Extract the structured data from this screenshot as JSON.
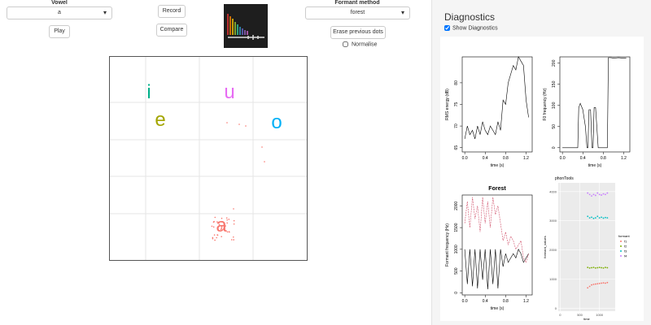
{
  "controls": {
    "vowel_label": "Vowel",
    "vowel_value": "a",
    "play": "Play",
    "record": "Record",
    "compare": "Compare",
    "formant_label": "Formant method",
    "formant_value": "forest",
    "erase": "Erase previous dots",
    "normalise": "Normalise"
  },
  "vowel_plot": {
    "letters": [
      "i",
      "e",
      "u",
      "o",
      "a"
    ],
    "colors": [
      "#00b08a",
      "#a3a500",
      "#e76bf3",
      "#00b0f6",
      "#f8766d"
    ]
  },
  "diagnostics": {
    "title": "Diagnostics",
    "show_label": "Show Diagnostics",
    "plots": [
      {
        "type": "line",
        "panel": "base",
        "ylabel": "RMS energy (dB)",
        "xlabel": "time (s)",
        "xlim": [
          -0.05,
          1.32
        ],
        "ylim": [
          64,
          86
        ],
        "xticks": [
          {
            "value": 0,
            "label": "0.0"
          },
          0.4,
          0.8,
          1.2
        ],
        "yticks": [
          65,
          70,
          75,
          80
        ],
        "series": [
          {
            "color": "#000000",
            "x": [
              0,
              0.05,
              0.1,
              0.15,
              0.2,
              0.25,
              0.3,
              0.35,
              0.4,
              0.45,
              0.5,
              0.55,
              0.6,
              0.65,
              0.7,
              0.75,
              0.8,
              0.85,
              0.9,
              0.95,
              1.0,
              1.05,
              1.1,
              1.15,
              1.2,
              1.25
            ],
            "values": [
              67,
              70,
              68,
              69,
              67,
              70,
              68,
              71,
              69,
              68,
              70,
              69,
              68,
              71,
              69,
              76,
              75,
              80,
              82,
              84,
              83,
              86,
              85,
              84,
              76,
              72
            ]
          }
        ]
      },
      {
        "type": "line",
        "panel": "base",
        "ylabel": "F0 frequency (Hz)",
        "xlabel": "time (s)",
        "xlim": [
          -0.05,
          1.32
        ],
        "ylim": [
          -10,
          215
        ],
        "xticks": [
          {
            "value": 0,
            "label": "0.0"
          },
          0.4,
          0.8,
          1.2
        ],
        "yticks": [
          0,
          50,
          100,
          150,
          200
        ],
        "series": [
          {
            "color": "#000000",
            "x": [
              0,
              0.2,
              0.3,
              0.32,
              0.35,
              0.4,
              0.45,
              0.48,
              0.5,
              0.52,
              0.55,
              0.58,
              0.6,
              0.62,
              0.65,
              0.7,
              0.72,
              0.75,
              0.8,
              0.88,
              0.9,
              0.95,
              1.0,
              1.1,
              1.2,
              1.25
            ],
            "values": [
              0,
              0,
              0,
              95,
              105,
              90,
              50,
              0,
              0,
              90,
              90,
              0,
              0,
              95,
              95,
              0,
              0,
              0,
              0,
              0,
              213,
              213,
              212,
              213,
              212,
              212
            ]
          }
        ]
      },
      {
        "type": "line",
        "panel": "base",
        "title": "Forest",
        "ylabel": "Formant frequency (Hz)",
        "xlabel": "time (s)",
        "xlim": [
          -0.05,
          1.32
        ],
        "ylim": [
          -50,
          2250
        ],
        "xticks": [
          {
            "value": 0,
            "label": "0.0"
          },
          0.4,
          0.8,
          1.2
        ],
        "yticks": [
          0,
          500,
          1000,
          1500,
          2000
        ],
        "series": [
          {
            "color": "#000000",
            "dash": false,
            "x": [
              0,
              0.05,
              0.1,
              0.15,
              0.2,
              0.25,
              0.3,
              0.35,
              0.4,
              0.45,
              0.5,
              0.55,
              0.6,
              0.65,
              0.7,
              0.75,
              0.8,
              0.85,
              0.9,
              0.95,
              1.0,
              1.05,
              1.1,
              1.15,
              1.2,
              1.25
            ],
            "values": [
              1000,
              200,
              1000,
              150,
              1000,
              100,
              1000,
              300,
              1000,
              80,
              1000,
              200,
              1000,
              100,
              1000,
              600,
              900,
              700,
              800,
              900,
              800,
              1000,
              900,
              700,
              800,
              900
            ]
          },
          {
            "color": "#d0506a",
            "dash": true,
            "x": [
              0,
              0.05,
              0.1,
              0.15,
              0.2,
              0.25,
              0.3,
              0.35,
              0.4,
              0.45,
              0.5,
              0.55,
              0.6,
              0.65,
              0.7,
              0.75,
              0.8,
              0.85,
              0.9,
              0.95,
              1.0,
              1.05,
              1.1,
              1.15,
              1.2,
              1.25
            ],
            "values": [
              1600,
              2100,
              1500,
              2200,
              1700,
              2000,
              1400,
              2200,
              1600,
              2100,
              1500,
              2200,
              1800,
              2000,
              1600,
              1200,
              1400,
              1100,
              1300,
              1200,
              1000,
              1100,
              1200,
              800,
              700,
              900
            ]
          }
        ]
      },
      {
        "type": "scatter",
        "panel": "gg",
        "title": "phonTools",
        "ylabel": "formant_values",
        "xlabel": "time",
        "xlim": [
          -50,
          1400
        ],
        "ylim": [
          -100,
          4300
        ],
        "xticks": [
          0,
          500,
          1000
        ],
        "yticks": [
          0,
          1000,
          2000,
          3000,
          4000
        ],
        "legend_title": "formant",
        "series": [
          {
            "name": "f1",
            "color": "#F8766D",
            "x": [
              700,
              750,
              800,
              850,
              900,
              950,
              1000,
              1050,
              1100,
              1150,
              1200
            ],
            "values": [
              700,
              750,
              800,
              820,
              830,
              840,
              850,
              860,
              870,
              860,
              880
            ]
          },
          {
            "name": "f2",
            "color": "#7CAE00",
            "x": [
              700,
              750,
              800,
              850,
              900,
              950,
              1000,
              1050,
              1100,
              1150,
              1200
            ],
            "values": [
              1400,
              1380,
              1390,
              1400,
              1380,
              1390,
              1400,
              1390,
              1380,
              1400,
              1390
            ]
          },
          {
            "name": "f3",
            "color": "#00BFC4",
            "x": [
              700,
              750,
              800,
              850,
              900,
              950,
              1000,
              1050,
              1100,
              1150,
              1200
            ],
            "values": [
              3150,
              3100,
              3120,
              3080,
              3100,
              3150,
              3100,
              3120,
              3090,
              3110,
              3100
            ]
          },
          {
            "name": "f4",
            "color": "#C77CFF",
            "x": [
              700,
              750,
              800,
              850,
              900,
              950,
              1000,
              1050,
              1100,
              1150,
              1200
            ],
            "values": [
              3950,
              3900,
              3850,
              3900,
              3870,
              3950,
              3900,
              3880,
              3920,
              3900,
              3950
            ]
          }
        ]
      }
    ]
  }
}
